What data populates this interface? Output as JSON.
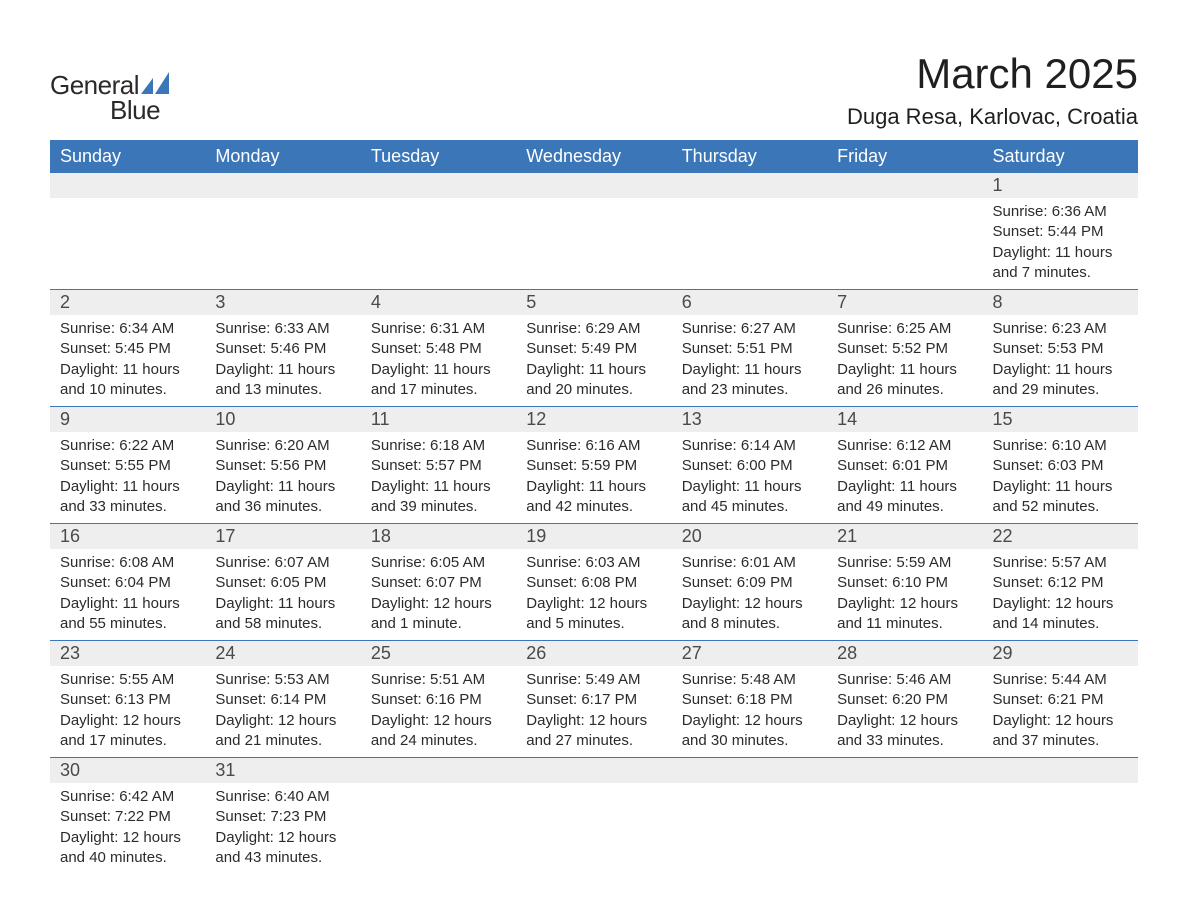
{
  "brand": {
    "name_a": "General",
    "name_b": "Blue",
    "accent_color": "#3a76b8",
    "logo_dark": "#2a2a2a"
  },
  "title": "March 2025",
  "location": "Duga Resa, Karlovac, Croatia",
  "colors": {
    "header_bg": "#3a76b8",
    "header_text": "#ffffff",
    "daynum_bg": "#eeeeee",
    "row_border": "#3a76b8",
    "body_text": "#2b2b2b",
    "page_bg": "#ffffff"
  },
  "day_headers": [
    "Sunday",
    "Monday",
    "Tuesday",
    "Wednesday",
    "Thursday",
    "Friday",
    "Saturday"
  ],
  "labels": {
    "sunrise": "Sunrise:",
    "sunset": "Sunset:",
    "daylight": "Daylight:"
  },
  "weeks": [
    [
      null,
      null,
      null,
      null,
      null,
      null,
      {
        "n": "1",
        "sunrise": "6:36 AM",
        "sunset": "5:44 PM",
        "daylight": "11 hours and 7 minutes."
      }
    ],
    [
      {
        "n": "2",
        "sunrise": "6:34 AM",
        "sunset": "5:45 PM",
        "daylight": "11 hours and 10 minutes."
      },
      {
        "n": "3",
        "sunrise": "6:33 AM",
        "sunset": "5:46 PM",
        "daylight": "11 hours and 13 minutes."
      },
      {
        "n": "4",
        "sunrise": "6:31 AM",
        "sunset": "5:48 PM",
        "daylight": "11 hours and 17 minutes."
      },
      {
        "n": "5",
        "sunrise": "6:29 AM",
        "sunset": "5:49 PM",
        "daylight": "11 hours and 20 minutes."
      },
      {
        "n": "6",
        "sunrise": "6:27 AM",
        "sunset": "5:51 PM",
        "daylight": "11 hours and 23 minutes."
      },
      {
        "n": "7",
        "sunrise": "6:25 AM",
        "sunset": "5:52 PM",
        "daylight": "11 hours and 26 minutes."
      },
      {
        "n": "8",
        "sunrise": "6:23 AM",
        "sunset": "5:53 PM",
        "daylight": "11 hours and 29 minutes."
      }
    ],
    [
      {
        "n": "9",
        "sunrise": "6:22 AM",
        "sunset": "5:55 PM",
        "daylight": "11 hours and 33 minutes."
      },
      {
        "n": "10",
        "sunrise": "6:20 AM",
        "sunset": "5:56 PM",
        "daylight": "11 hours and 36 minutes."
      },
      {
        "n": "11",
        "sunrise": "6:18 AM",
        "sunset": "5:57 PM",
        "daylight": "11 hours and 39 minutes."
      },
      {
        "n": "12",
        "sunrise": "6:16 AM",
        "sunset": "5:59 PM",
        "daylight": "11 hours and 42 minutes."
      },
      {
        "n": "13",
        "sunrise": "6:14 AM",
        "sunset": "6:00 PM",
        "daylight": "11 hours and 45 minutes."
      },
      {
        "n": "14",
        "sunrise": "6:12 AM",
        "sunset": "6:01 PM",
        "daylight": "11 hours and 49 minutes."
      },
      {
        "n": "15",
        "sunrise": "6:10 AM",
        "sunset": "6:03 PM",
        "daylight": "11 hours and 52 minutes."
      }
    ],
    [
      {
        "n": "16",
        "sunrise": "6:08 AM",
        "sunset": "6:04 PM",
        "daylight": "11 hours and 55 minutes."
      },
      {
        "n": "17",
        "sunrise": "6:07 AM",
        "sunset": "6:05 PM",
        "daylight": "11 hours and 58 minutes."
      },
      {
        "n": "18",
        "sunrise": "6:05 AM",
        "sunset": "6:07 PM",
        "daylight": "12 hours and 1 minute."
      },
      {
        "n": "19",
        "sunrise": "6:03 AM",
        "sunset": "6:08 PM",
        "daylight": "12 hours and 5 minutes."
      },
      {
        "n": "20",
        "sunrise": "6:01 AM",
        "sunset": "6:09 PM",
        "daylight": "12 hours and 8 minutes."
      },
      {
        "n": "21",
        "sunrise": "5:59 AM",
        "sunset": "6:10 PM",
        "daylight": "12 hours and 11 minutes."
      },
      {
        "n": "22",
        "sunrise": "5:57 AM",
        "sunset": "6:12 PM",
        "daylight": "12 hours and 14 minutes."
      }
    ],
    [
      {
        "n": "23",
        "sunrise": "5:55 AM",
        "sunset": "6:13 PM",
        "daylight": "12 hours and 17 minutes."
      },
      {
        "n": "24",
        "sunrise": "5:53 AM",
        "sunset": "6:14 PM",
        "daylight": "12 hours and 21 minutes."
      },
      {
        "n": "25",
        "sunrise": "5:51 AM",
        "sunset": "6:16 PM",
        "daylight": "12 hours and 24 minutes."
      },
      {
        "n": "26",
        "sunrise": "5:49 AM",
        "sunset": "6:17 PM",
        "daylight": "12 hours and 27 minutes."
      },
      {
        "n": "27",
        "sunrise": "5:48 AM",
        "sunset": "6:18 PM",
        "daylight": "12 hours and 30 minutes."
      },
      {
        "n": "28",
        "sunrise": "5:46 AM",
        "sunset": "6:20 PM",
        "daylight": "12 hours and 33 minutes."
      },
      {
        "n": "29",
        "sunrise": "5:44 AM",
        "sunset": "6:21 PM",
        "daylight": "12 hours and 37 minutes."
      }
    ],
    [
      {
        "n": "30",
        "sunrise": "6:42 AM",
        "sunset": "7:22 PM",
        "daylight": "12 hours and 40 minutes."
      },
      {
        "n": "31",
        "sunrise": "6:40 AM",
        "sunset": "7:23 PM",
        "daylight": "12 hours and 43 minutes."
      },
      null,
      null,
      null,
      null,
      null
    ]
  ]
}
